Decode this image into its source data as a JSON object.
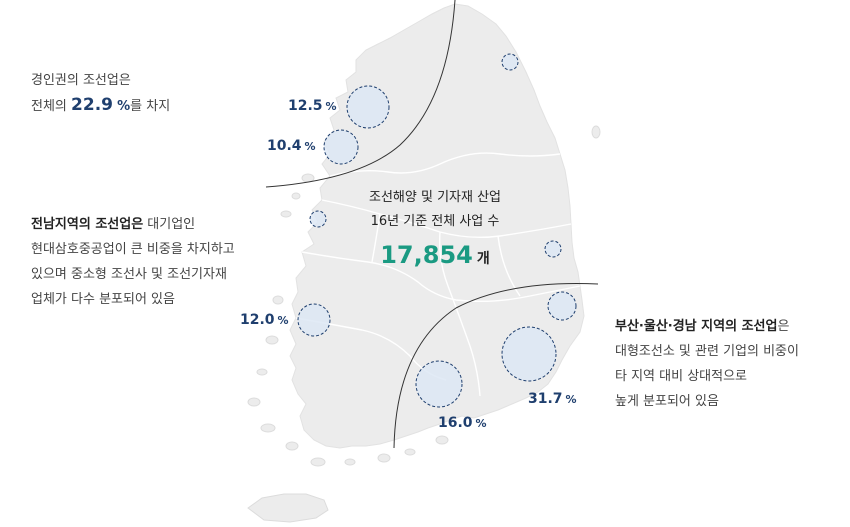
{
  "regions": {
    "gyeongin": {
      "name": "경인권의 조선업은",
      "prefix": "전체의",
      "share": "22.9",
      "unit": "%",
      "suffix": "를 차지"
    },
    "jeonnam": {
      "lead": "전남지역의 조선업은",
      "lead_rest": " 대기업인",
      "line2": "현대삼호중공업이 큰 비중을 차지하고",
      "line3": "있으며 중소형 조선사 및 조선기자재",
      "line4": "업체가 다수 분포되어 있음"
    },
    "busan": {
      "lead": "부산·울산·경남 지역의 조선업",
      "lead_rest": "은",
      "line2": "대형조선소 및 관련 기업의 비중이",
      "line3": "타 지역 대비 상대적으로",
      "line4": "높게 분포되어 있음"
    }
  },
  "center": {
    "line1": "조선해양 및 기자재 산업",
    "line2": "16년 기준 전체 사업 수",
    "count": "17,854",
    "count_unit": "개"
  },
  "markers": [
    {
      "value": "12.5",
      "unit": "%"
    },
    {
      "value": "10.4",
      "unit": "%"
    },
    {
      "value": "12.0",
      "unit": "%"
    },
    {
      "value": "16.0",
      "unit": "%"
    },
    {
      "value": "31.7",
      "unit": "%"
    }
  ],
  "colors": {
    "land": "#ececec",
    "border": "#ffffff",
    "divider": "#333333",
    "circle_stroke": "#1f3f6e",
    "circle_fill": "#dde8f5",
    "accent_green": "#1a9a82",
    "accent_navy": "#1f3f6e"
  }
}
